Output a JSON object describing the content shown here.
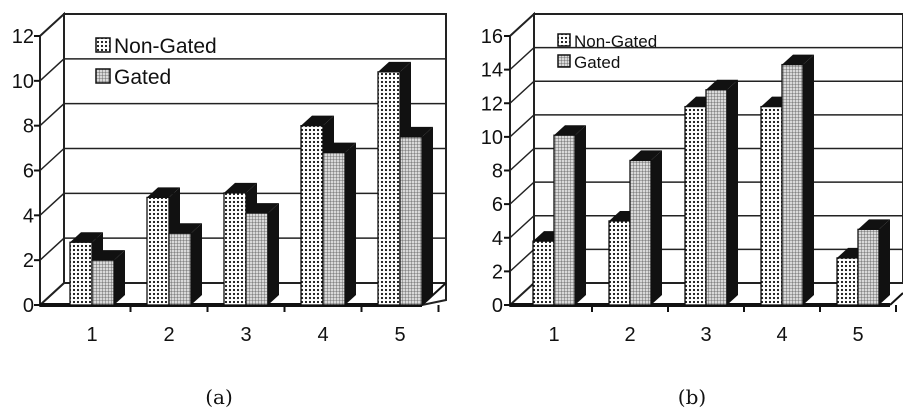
{
  "chart_data": [
    {
      "panel": "(a)",
      "type": "bar",
      "caption": "(a)",
      "categories": [
        "1",
        "2",
        "3",
        "4",
        "5"
      ],
      "series": [
        {
          "name": "Non-Gated",
          "values": [
            2.8,
            4.8,
            5.0,
            8.0,
            10.4
          ]
        },
        {
          "name": "Gated",
          "values": [
            2.0,
            3.2,
            4.1,
            6.8,
            7.5
          ]
        }
      ],
      "ylim": [
        0,
        12
      ],
      "yticks": [
        "0",
        "2",
        "4",
        "6",
        "8",
        "10",
        "12"
      ],
      "grid": true,
      "legend": "top-left",
      "style": "3d-bars"
    },
    {
      "panel": "(b)",
      "type": "bar",
      "caption": "(b)",
      "categories": [
        "1",
        "2",
        "3",
        "4",
        "5"
      ],
      "series": [
        {
          "name": "Non-Gated",
          "values": [
            3.8,
            5.0,
            11.8,
            11.8,
            2.8
          ]
        },
        {
          "name": "Gated",
          "values": [
            10.1,
            8.6,
            12.8,
            14.3,
            4.5
          ]
        }
      ],
      "ylim": [
        0,
        16
      ],
      "yticks": [
        "0",
        "2",
        "4",
        "6",
        "8",
        "10",
        "12",
        "14",
        "16"
      ],
      "grid": true,
      "legend": "top-left",
      "style": "3d-bars"
    }
  ]
}
